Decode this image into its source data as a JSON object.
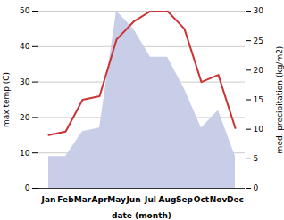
{
  "chart_data": {
    "type": "line",
    "xlabel": "date (month)",
    "ylabel": "max temp (C)",
    "y2label": "med. precipitation (kg/m2)",
    "categories": [
      "Jan",
      "Feb",
      "Mar",
      "Apr",
      "May",
      "Jun",
      "Jul",
      "Aug",
      "Sep",
      "Oct",
      "Nov",
      "Dec"
    ],
    "series": [
      {
        "type": "area",
        "color": "#c8cde8",
        "values": [
          9,
          9,
          16,
          17,
          50,
          45,
          37,
          37,
          28,
          17,
          22,
          9
        ]
      },
      {
        "type": "line",
        "color": "#cc3333",
        "values": [
          15,
          16,
          25,
          26,
          42,
          47,
          50,
          50,
          45,
          30,
          32,
          17
        ]
      }
    ],
    "ylim": [
      0,
      50
    ],
    "yticks": [
      0,
      10,
      20,
      30,
      40,
      50
    ],
    "y2lim": [
      0,
      30
    ],
    "y2ticks": [
      0,
      5,
      10,
      15,
      20,
      25,
      30
    ],
    "grid": true
  }
}
